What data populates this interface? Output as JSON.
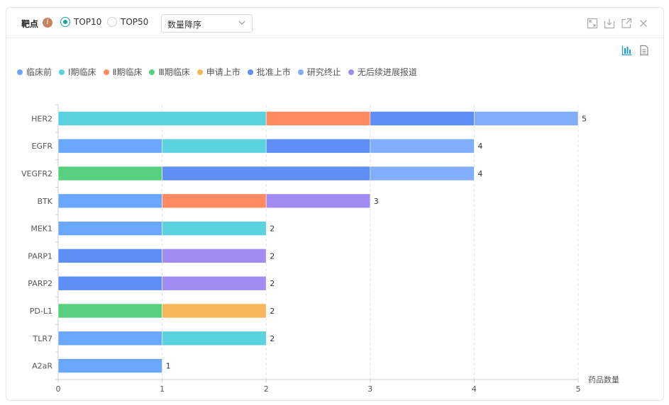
{
  "header": {
    "title": "靶点",
    "info_icon": "i",
    "radio_top10": "TOP10",
    "radio_top50": "TOP50",
    "sort_select": "数量降序"
  },
  "legend": [
    {
      "name": "临床前",
      "color": "#6aa8ff"
    },
    {
      "name": "Ⅰ期临床",
      "color": "#5bd3df"
    },
    {
      "name": "Ⅱ期临床",
      "color": "#ff8a61"
    },
    {
      "name": "Ⅲ期临床",
      "color": "#57d07f"
    },
    {
      "name": "申请上市",
      "color": "#f8b65a"
    },
    {
      "name": "批准上市",
      "color": "#5f8ff5"
    },
    {
      "name": "研究终止",
      "color": "#82aef9"
    },
    {
      "name": "无后续进展报道",
      "color": "#a18cf2"
    }
  ],
  "chart_data": {
    "type": "bar",
    "orientation": "horizontal",
    "stacked": true,
    "categories": [
      "HER2",
      "EGFR",
      "VEGFR2",
      "BTK",
      "MEK1",
      "PARP1",
      "PARP2",
      "PD-L1",
      "TLR7",
      "A2aR"
    ],
    "series": [
      {
        "name": "临床前",
        "values": [
          0,
          1,
          0,
          1,
          1,
          0,
          0,
          0,
          1,
          1
        ]
      },
      {
        "name": "Ⅰ期临床",
        "values": [
          2,
          1,
          0,
          0,
          1,
          0,
          0,
          0,
          1,
          0
        ]
      },
      {
        "name": "Ⅱ期临床",
        "values": [
          1,
          0,
          0,
          1,
          0,
          0,
          0,
          0,
          0,
          0
        ]
      },
      {
        "name": "Ⅲ期临床",
        "values": [
          0,
          0,
          1,
          0,
          0,
          0,
          0,
          1,
          0,
          0
        ]
      },
      {
        "name": "申请上市",
        "values": [
          0,
          0,
          0,
          0,
          0,
          0,
          0,
          1,
          0,
          0
        ]
      },
      {
        "name": "批准上市",
        "values": [
          1,
          1,
          2,
          0,
          0,
          1,
          1,
          0,
          0,
          0
        ]
      },
      {
        "name": "研究终止",
        "values": [
          1,
          1,
          1,
          0,
          0,
          0,
          0,
          0,
          0,
          0
        ]
      },
      {
        "name": "无后续进展报道",
        "values": [
          0,
          0,
          0,
          1,
          0,
          1,
          1,
          0,
          0,
          0
        ]
      }
    ],
    "totals": [
      5,
      4,
      4,
      3,
      2,
      2,
      2,
      2,
      2,
      1
    ],
    "xlabel": "药品数量",
    "ylabel": "",
    "xlim": [
      0,
      5
    ],
    "xticks": [
      "0",
      "1",
      "2",
      "3",
      "4",
      "5"
    ],
    "grid": "vertical-dashed",
    "legend_position": "top-left"
  }
}
